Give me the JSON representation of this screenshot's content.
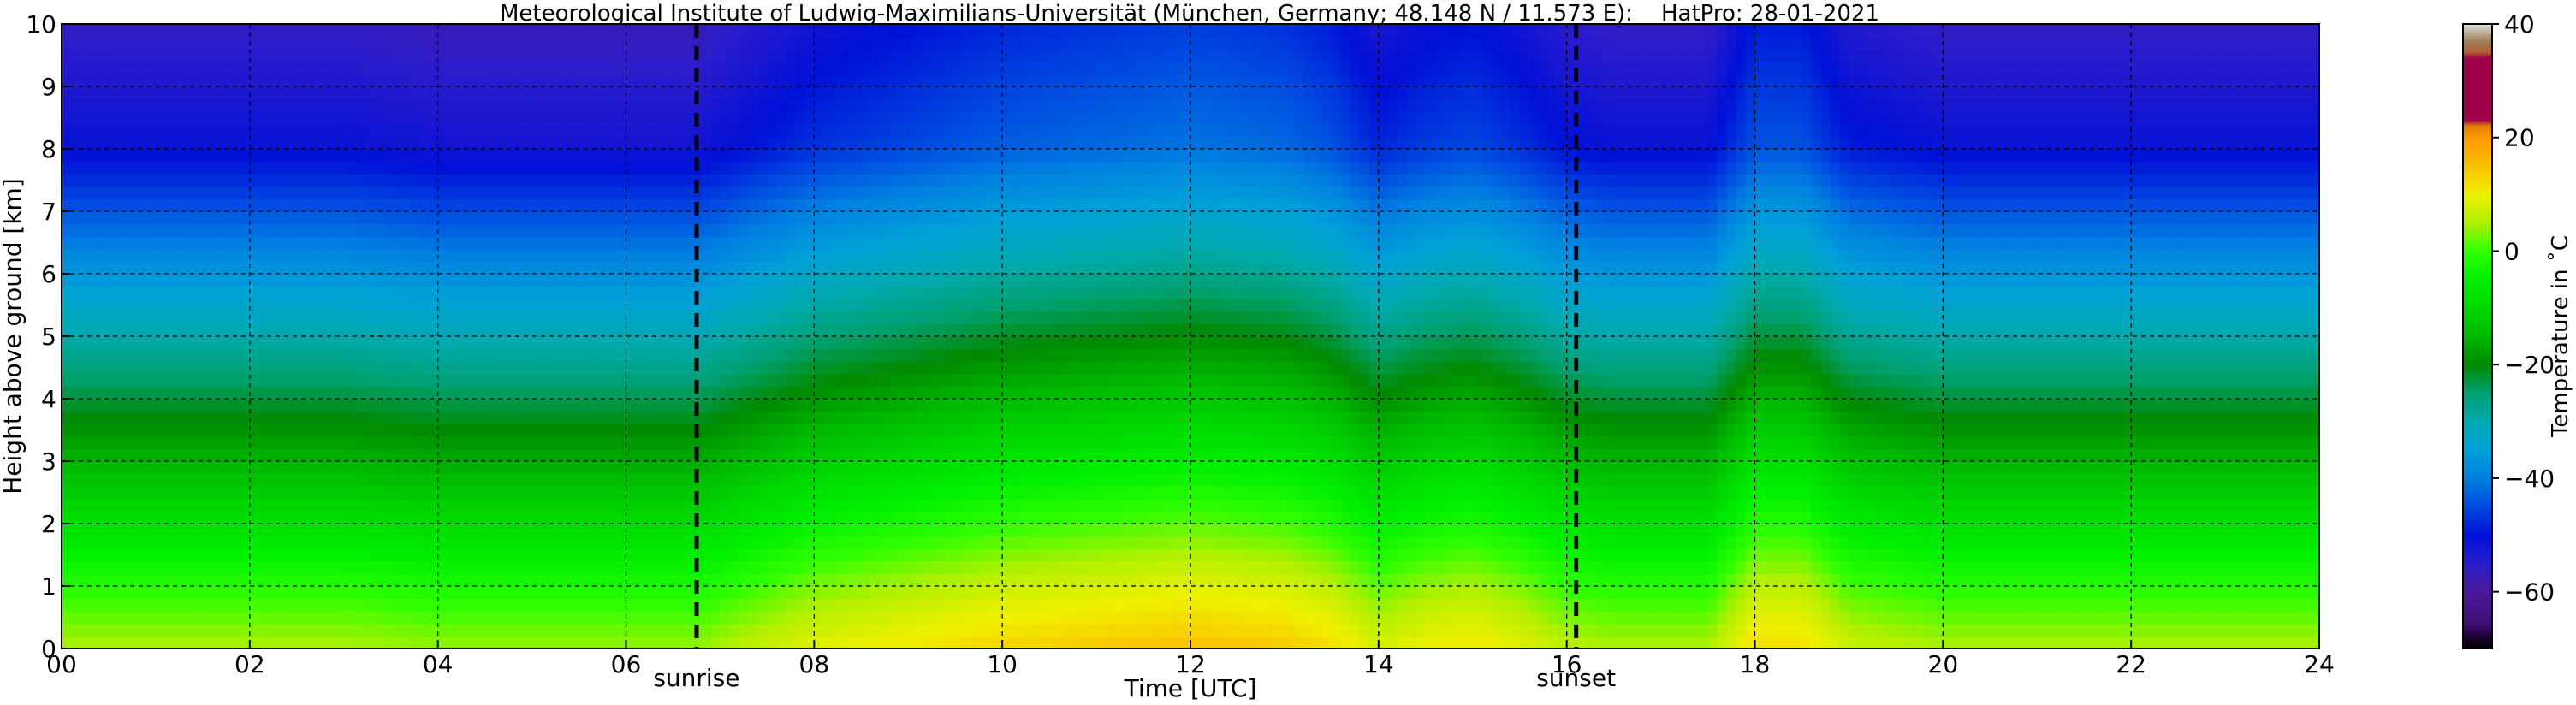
{
  "chart_data": [
    {
      "type": "heatmap",
      "title": "Meteorological Institute of Ludwig-Maximilians-Universität (München, Germany; 48.148 N / 11.573 E):    HatPro: 28-01-2021",
      "xlabel": "Time [UTC]",
      "ylabel": "Height above ground [km]",
      "xlim": [
        0,
        24
      ],
      "ylim": [
        0,
        10
      ],
      "grid": true,
      "x_ticks": [
        "00",
        "02",
        "04",
        "06",
        "08",
        "10",
        "12",
        "14",
        "16",
        "18",
        "20",
        "22",
        "24"
      ],
      "x_tick_values": [
        0,
        2,
        4,
        6,
        8,
        10,
        12,
        14,
        16,
        18,
        20,
        22,
        24
      ],
      "y_ticks": [
        "0",
        "1",
        "2",
        "3",
        "4",
        "5",
        "6",
        "7",
        "8",
        "9",
        "10"
      ],
      "y_tick_values": [
        0,
        1,
        2,
        3,
        4,
        5,
        6,
        7,
        8,
        9,
        10
      ],
      "vlines": [
        {
          "x": 6.75,
          "label": "sunrise"
        },
        {
          "x": 16.1,
          "label": "sunset"
        }
      ],
      "z_unit": "°C",
      "x": [
        0,
        1,
        2,
        3,
        4,
        5,
        6,
        6.75,
        7.5,
        8,
        9,
        10,
        11,
        12,
        13,
        13.5,
        14,
        14.5,
        15,
        15.5,
        16,
        16.5,
        17,
        17.5,
        18,
        18.5,
        19,
        20,
        21,
        22,
        23,
        24
      ],
      "y": [
        0,
        0.5,
        1,
        1.5,
        2,
        2.5,
        3,
        3.5,
        4,
        4.5,
        5,
        5.5,
        6,
        6.5,
        7,
        7.5,
        8,
        8.5,
        9,
        9.5,
        10
      ],
      "surface_temperature": [
        5,
        5,
        5,
        5,
        4,
        4,
        4,
        4,
        7,
        9,
        11,
        13,
        14,
        15,
        14,
        12,
        8,
        10,
        11,
        9,
        6,
        5,
        5,
        5,
        12,
        12,
        7,
        5,
        5,
        5,
        5,
        5
      ],
      "cold_anomaly": [
        0,
        0,
        0,
        0,
        0,
        0,
        0,
        0,
        0,
        0,
        0,
        0,
        0,
        0,
        0,
        0,
        0,
        0,
        0,
        0,
        0,
        0,
        0,
        0,
        0,
        0,
        0,
        0,
        0,
        0,
        0,
        0
      ]
    },
    {
      "type": "colorbar",
      "label": "Temperature in ˚C",
      "range": [
        -70,
        40
      ],
      "ticks": [
        "40",
        "20",
        "0",
        "−20",
        "−40",
        "−60"
      ],
      "tick_values": [
        40,
        20,
        0,
        -20,
        -40,
        -60
      ],
      "colors": [
        {
          "value": -70,
          "color": "#000000"
        },
        {
          "value": -68,
          "color": "#1a0030"
        },
        {
          "value": -66,
          "color": "#3a0f6e"
        },
        {
          "value": -60,
          "color": "#4b1a9c"
        },
        {
          "value": -55,
          "color": "#2a1ccc"
        },
        {
          "value": -50,
          "color": "#0010d8"
        },
        {
          "value": -45,
          "color": "#0048e0"
        },
        {
          "value": -40,
          "color": "#0080e0"
        },
        {
          "value": -35,
          "color": "#00a0d8"
        },
        {
          "value": -30,
          "color": "#00aab0"
        },
        {
          "value": -25,
          "color": "#00a070"
        },
        {
          "value": -20,
          "color": "#008a00"
        },
        {
          "value": -15,
          "color": "#00b800"
        },
        {
          "value": -10,
          "color": "#00d800"
        },
        {
          "value": -5,
          "color": "#00f000"
        },
        {
          "value": 0,
          "color": "#30ff00"
        },
        {
          "value": 5,
          "color": "#b0f000"
        },
        {
          "value": 10,
          "color": "#f0f000"
        },
        {
          "value": 15,
          "color": "#f8c000"
        },
        {
          "value": 20,
          "color": "#ff9800"
        },
        {
          "value": 22,
          "color": "#e08000"
        },
        {
          "value": 23,
          "color": "#a0004a"
        },
        {
          "value": 34,
          "color": "#a0004a"
        },
        {
          "value": 35,
          "color": "#b06030"
        },
        {
          "value": 37,
          "color": "#a08060"
        },
        {
          "value": 39,
          "color": "#c8c0b0"
        },
        {
          "value": 40,
          "color": "#e0e0e0"
        }
      ]
    }
  ]
}
